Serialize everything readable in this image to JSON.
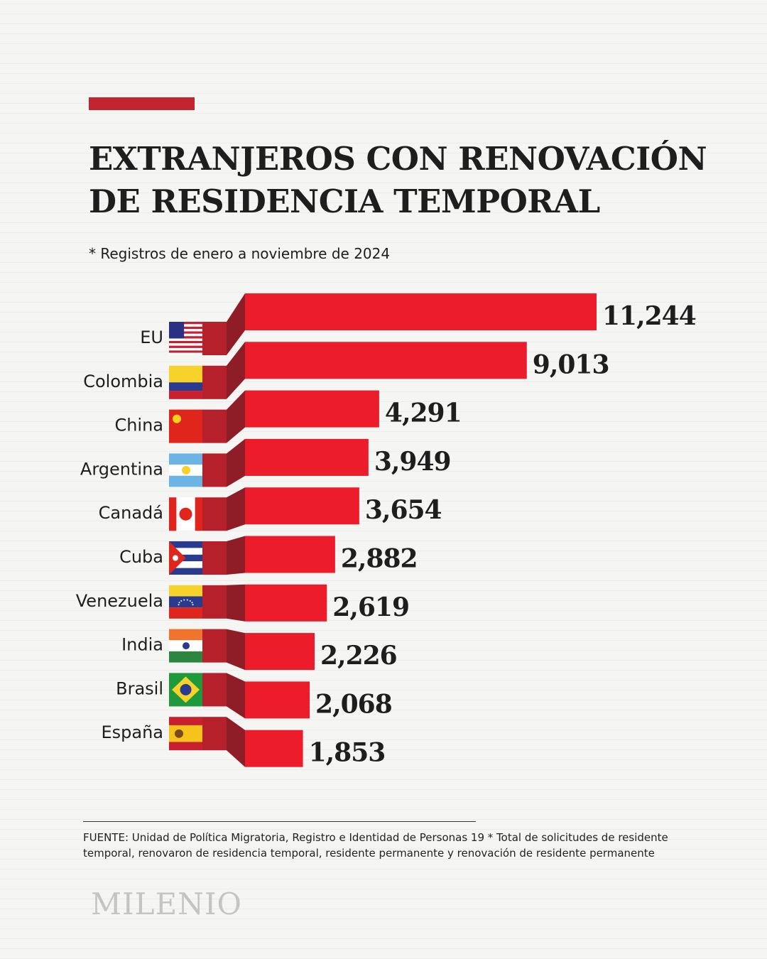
{
  "colors": {
    "accent": "#c4242f",
    "bar": "#ec1c2a",
    "bar_dark": "#8f1d27",
    "bar_mid": "#b5202b",
    "text": "#1e1e1e"
  },
  "header": {
    "title_line1": "EXTRANJEROS CON RENOVACIÓN",
    "title_line2": "DE RESIDENCIA TEMPORAL",
    "subtitle": "* Registros de enero a noviembre de 2024"
  },
  "chart_data": {
    "type": "bar",
    "orientation": "horizontal",
    "categories": [
      "EU",
      "Colombia",
      "China",
      "Argentina",
      "Canadá",
      "Cuba",
      "Venezuela",
      "India",
      "Brasil",
      "España"
    ],
    "values": [
      11244,
      9013,
      4291,
      3949,
      3654,
      2882,
      2619,
      2226,
      2068,
      1853
    ],
    "value_labels": [
      "11,244",
      "9,013",
      "4,291",
      "3,949",
      "3,654",
      "2,882",
      "2,619",
      "2,226",
      "2,068",
      "1,853"
    ],
    "flags": [
      "usa-flag-icon",
      "colombia-flag-icon",
      "china-flag-icon",
      "argentina-flag-icon",
      "canada-flag-icon",
      "cuba-flag-icon",
      "venezuela-flag-icon",
      "india-flag-icon",
      "brazil-flag-icon",
      "spain-flag-icon"
    ],
    "title": "EXTRANJEROS CON RENOVACIÓN DE RESIDENCIA TEMPORAL",
    "xlim": [
      0,
      11244
    ],
    "grid": false,
    "legend": "none"
  },
  "footer": {
    "source": "FUENTE: Unidad de Política Migratoria, Registro e Identidad de Personas 19 * Total de solicitudes de residente temporal, renovaron de residencia temporal, residente permanente y renovación de residente permanente",
    "logo": "MILENIO"
  }
}
